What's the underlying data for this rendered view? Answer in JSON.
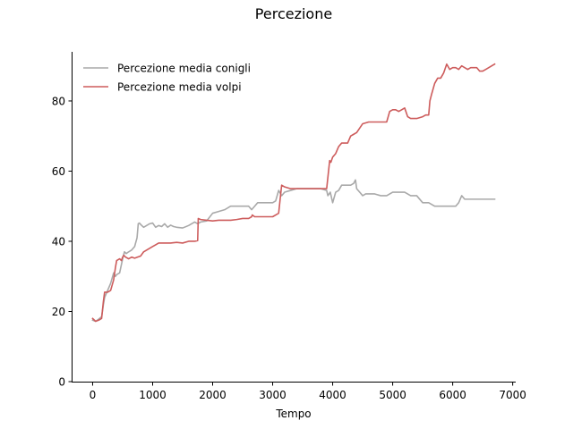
{
  "chart_data": {
    "type": "line",
    "title": "Percezione",
    "xlabel": "Tempo",
    "ylabel": "",
    "xlim": [
      -350,
      7050
    ],
    "ylim": [
      0,
      94
    ],
    "xticks": [
      0,
      1000,
      2000,
      3000,
      4000,
      5000,
      6000,
      7000
    ],
    "yticks": [
      0,
      20,
      40,
      60,
      80
    ],
    "grid": false,
    "legend_position": "top-left",
    "series": [
      {
        "name": "Percezione media conigli",
        "color": "#a9a9a9",
        "x": [
          0,
          50,
          100,
          150,
          180,
          200,
          250,
          300,
          350,
          380,
          400,
          450,
          500,
          530,
          560,
          600,
          650,
          700,
          740,
          760,
          780,
          800,
          850,
          900,
          950,
          1000,
          1050,
          1100,
          1150,
          1200,
          1250,
          1300,
          1350,
          1400,
          1500,
          1600,
          1700,
          1750,
          1800,
          1900,
          2000,
          2100,
          2200,
          2300,
          2400,
          2500,
          2600,
          2650,
          2700,
          2750,
          2800,
          2900,
          3000,
          3050,
          3100,
          3150,
          3200,
          3300,
          3400,
          3500,
          3600,
          3700,
          3800,
          3900,
          3920,
          3960,
          4000,
          4050,
          4100,
          4150,
          4200,
          4250,
          4300,
          4350,
          4380,
          4400,
          4450,
          4500,
          4550,
          4600,
          4700,
          4800,
          4900,
          5000,
          5100,
          5200,
          5300,
          5400,
          5500,
          5600,
          5700,
          5800,
          5900,
          6000,
          6050,
          6100,
          6150,
          6200,
          6300,
          6400,
          6500,
          6600,
          6700
        ],
        "y": [
          17.5,
          17.2,
          17.8,
          18.5,
          22,
          24,
          26,
          28,
          31,
          30,
          30.5,
          31,
          35,
          37,
          36.5,
          37,
          37.5,
          38.5,
          41,
          45,
          45.2,
          44.8,
          44,
          44.5,
          45,
          45.2,
          44,
          44.5,
          44.2,
          45,
          44,
          44.6,
          44.2,
          44,
          43.8,
          44.5,
          45.5,
          45,
          45.5,
          45.8,
          48,
          48.5,
          49,
          50,
          50,
          50,
          50,
          49,
          50,
          51,
          51,
          51,
          51,
          51.5,
          54.5,
          53,
          54,
          54.5,
          55,
          55,
          55,
          55,
          55,
          54.5,
          53,
          54,
          51,
          54,
          54.5,
          56,
          56,
          56,
          56,
          56.5,
          57.5,
          55,
          54,
          53,
          53.5,
          53.5,
          53.5,
          53,
          53,
          54,
          54,
          54,
          53,
          53,
          51,
          51,
          50,
          50,
          50,
          50,
          50,
          51,
          53,
          52,
          52,
          52,
          52,
          52,
          52
        ]
      },
      {
        "name": "Percezione media volpi",
        "color": "#cd5c5c",
        "x": [
          0,
          50,
          100,
          150,
          180,
          200,
          250,
          300,
          350,
          380,
          400,
          450,
          480,
          500,
          520,
          550,
          600,
          650,
          700,
          750,
          800,
          850,
          900,
          950,
          1000,
          1050,
          1100,
          1200,
          1300,
          1400,
          1500,
          1600,
          1700,
          1750,
          1760,
          1800,
          1900,
          2000,
          2100,
          2200,
          2300,
          2400,
          2500,
          2600,
          2650,
          2660,
          2700,
          2800,
          2900,
          3000,
          3050,
          3100,
          3150,
          3200,
          3300,
          3400,
          3500,
          3600,
          3700,
          3800,
          3900,
          3950,
          3970,
          4000,
          4050,
          4100,
          4150,
          4200,
          4250,
          4300,
          4350,
          4400,
          4500,
          4600,
          4700,
          4800,
          4900,
          4950,
          5000,
          5050,
          5100,
          5150,
          5200,
          5250,
          5300,
          5400,
          5500,
          5550,
          5600,
          5620,
          5650,
          5700,
          5750,
          5800,
          5850,
          5900,
          5950,
          6000,
          6050,
          6100,
          6150,
          6200,
          6250,
          6300,
          6400,
          6450,
          6500,
          6550,
          6600,
          6650,
          6700
        ],
        "y": [
          18,
          17.2,
          17.5,
          18,
          23,
          25.5,
          25.5,
          26,
          29,
          32.5,
          34.5,
          35,
          34.5,
          35.5,
          36,
          35.5,
          35,
          35.5,
          35.2,
          35.5,
          35.8,
          37,
          37.5,
          38,
          38.5,
          39,
          39.5,
          39.5,
          39.5,
          39.7,
          39.5,
          40,
          40,
          40.2,
          46.5,
          46.2,
          46,
          45.8,
          46,
          46,
          46,
          46.2,
          46.5,
          46.5,
          47,
          47.5,
          47,
          47,
          47,
          47,
          47.5,
          48,
          56,
          55.5,
          55,
          55,
          55,
          55,
          55,
          55,
          55,
          63,
          62.5,
          64,
          65,
          67,
          68,
          68,
          68,
          70,
          70.5,
          71,
          73.5,
          74,
          74,
          74,
          74,
          77,
          77.5,
          77.5,
          77,
          77.5,
          78,
          75.5,
          75,
          75,
          75.5,
          76,
          76,
          80,
          82,
          85,
          86.5,
          86.5,
          88,
          90.5,
          89,
          89.5,
          89.5,
          89,
          90,
          89.5,
          89,
          89.5,
          89.5,
          88.5,
          88.5,
          89,
          89.5,
          90,
          90.5
        ]
      }
    ]
  }
}
